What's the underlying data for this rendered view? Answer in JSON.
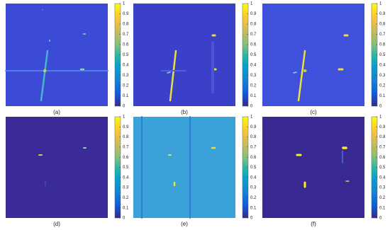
{
  "panels": [
    {
      "label": "(a)",
      "colorbar": {
        "lim": [
          0,
          1
        ],
        "ticks": [
          0,
          0.1,
          0.2,
          0.3,
          0.4,
          0.5,
          0.6,
          0.7,
          0.8,
          0.9,
          1
        ]
      }
    },
    {
      "label": "(b)",
      "colorbar": {
        "lim": [
          0,
          1
        ],
        "ticks": [
          0,
          0.1,
          0.2,
          0.3,
          0.4,
          0.5,
          0.6,
          0.7,
          0.8,
          0.9,
          1
        ]
      }
    },
    {
      "label": "(c)",
      "colorbar": {
        "lim": [
          0,
          1
        ],
        "ticks": [
          0,
          0.1,
          0.2,
          0.3,
          0.4,
          0.5,
          0.6,
          0.7,
          0.8,
          0.9,
          1
        ]
      }
    },
    {
      "label": "(d)",
      "colorbar": {
        "lim": [
          0,
          1
        ],
        "ticks": [
          0,
          0.1,
          0.2,
          0.3,
          0.4,
          0.5,
          0.6,
          0.7,
          0.8,
          0.9,
          1
        ]
      }
    },
    {
      "label": "(e)",
      "colorbar": {
        "lim": [
          0,
          1
        ],
        "ticks": [
          0,
          0.1,
          0.2,
          0.3,
          0.4,
          0.5,
          0.6,
          0.7,
          0.8,
          0.9,
          1
        ]
      }
    },
    {
      "label": "(f)",
      "colorbar": {
        "lim": [
          0,
          1
        ],
        "ticks": [
          0,
          0.1,
          0.2,
          0.3,
          0.4,
          0.5,
          0.6,
          0.7,
          0.8,
          0.9,
          1
        ]
      }
    }
  ]
}
